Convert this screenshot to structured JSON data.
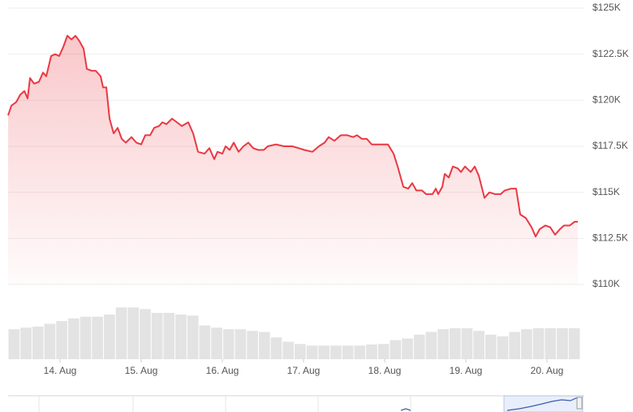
{
  "chart_data": {
    "type": "line",
    "color": "#ea3943",
    "grid": true,
    "xlim": [
      13.36,
      20.41
    ],
    "xticks": [
      {
        "value": 14,
        "label": "14. Aug"
      },
      {
        "value": 15,
        "label": "15. Aug"
      },
      {
        "value": 16,
        "label": "16. Aug"
      },
      {
        "value": 17,
        "label": "17. Aug"
      },
      {
        "value": 18,
        "label": "18. Aug"
      },
      {
        "value": 19,
        "label": "19. Aug"
      },
      {
        "value": 20,
        "label": "20. Aug"
      }
    ],
    "ylim": [
      110000,
      125000
    ],
    "yticks": [
      {
        "value": 110000,
        "label": "$110K"
      },
      {
        "value": 112500,
        "label": "$112.5K"
      },
      {
        "value": 115000,
        "label": "$115K"
      },
      {
        "value": 117500,
        "label": "$117.5K"
      },
      {
        "value": 120000,
        "label": "$120K"
      },
      {
        "value": 122500,
        "label": "$122.5K"
      },
      {
        "value": 125000,
        "label": "$125K"
      }
    ],
    "x": [
      13.36,
      13.4,
      13.46,
      13.51,
      13.56,
      13.6,
      13.63,
      13.68,
      13.74,
      13.79,
      13.83,
      13.89,
      13.94,
      13.99,
      14.04,
      14.09,
      14.14,
      14.19,
      14.24,
      14.29,
      14.33,
      14.39,
      14.44,
      14.5,
      14.53,
      14.57,
      14.61,
      14.66,
      14.71,
      14.76,
      14.81,
      14.88,
      14.94,
      15.0,
      15.05,
      15.11,
      15.16,
      15.22,
      15.26,
      15.31,
      15.38,
      15.44,
      15.5,
      15.58,
      15.64,
      15.7,
      15.78,
      15.84,
      15.9,
      15.94,
      16.0,
      16.04,
      16.09,
      16.14,
      16.2,
      16.26,
      16.32,
      16.38,
      16.44,
      16.51,
      16.56,
      16.66,
      16.76,
      16.86,
      16.94,
      17.01,
      17.11,
      17.19,
      17.26,
      17.31,
      17.38,
      17.46,
      17.54,
      17.61,
      17.66,
      17.72,
      17.78,
      17.84,
      17.92,
      17.98,
      18.04,
      18.11,
      18.16,
      18.23,
      18.29,
      18.34,
      18.39,
      18.46,
      18.51,
      18.59,
      18.63,
      18.66,
      18.71,
      18.74,
      18.79,
      18.84,
      18.9,
      18.94,
      18.99,
      19.06,
      19.11,
      19.16,
      19.23,
      19.29,
      19.36,
      19.43,
      19.48,
      19.56,
      19.62,
      19.67,
      19.74,
      19.81,
      19.86,
      19.91,
      19.98,
      20.04,
      20.1,
      20.16,
      20.21,
      20.28,
      20.34,
      20.38
    ],
    "values": [
      119180,
      119700,
      119900,
      120300,
      120500,
      120100,
      121200,
      120900,
      121000,
      121500,
      121300,
      122400,
      122500,
      122400,
      122900,
      123500,
      123300,
      123500,
      123200,
      122800,
      121700,
      121600,
      121600,
      121300,
      120700,
      120700,
      119000,
      118200,
      118500,
      117900,
      117700,
      118000,
      117700,
      117600,
      118100,
      118100,
      118500,
      118600,
      118800,
      118700,
      119000,
      118800,
      118600,
      118800,
      118200,
      117200,
      117100,
      117400,
      116800,
      117200,
      117100,
      117500,
      117300,
      117700,
      117200,
      117500,
      117700,
      117400,
      117300,
      117300,
      117500,
      117600,
      117500,
      117500,
      117400,
      117300,
      117200,
      117500,
      117700,
      118000,
      117800,
      118100,
      118100,
      118000,
      118100,
      117900,
      117900,
      117600,
      117600,
      117600,
      117600,
      117100,
      116400,
      115300,
      115200,
      115500,
      115100,
      115100,
      114900,
      114900,
      115200,
      114900,
      115300,
      116000,
      115800,
      116400,
      116300,
      116100,
      116400,
      116100,
      116400,
      115900,
      114700,
      115000,
      114900,
      114900,
      115100,
      115200,
      115200,
      113800,
      113600,
      113100,
      112600,
      113000,
      113200,
      113100,
      112700,
      113000,
      113200,
      113200,
      113400,
      113400
    ],
    "volume": {
      "color": "#e3e3e3",
      "ylim": [
        0,
        100
      ],
      "values": [
        55,
        58,
        60,
        65,
        70,
        75,
        78,
        78,
        82,
        95,
        95,
        92,
        85,
        85,
        82,
        80,
        62,
        58,
        55,
        55,
        52,
        50,
        40,
        32,
        28,
        25,
        25,
        25,
        25,
        25,
        27,
        28,
        35,
        38,
        45,
        50,
        55,
        57,
        57,
        52,
        45,
        42,
        50,
        55,
        57,
        57,
        57,
        57
      ]
    }
  }
}
